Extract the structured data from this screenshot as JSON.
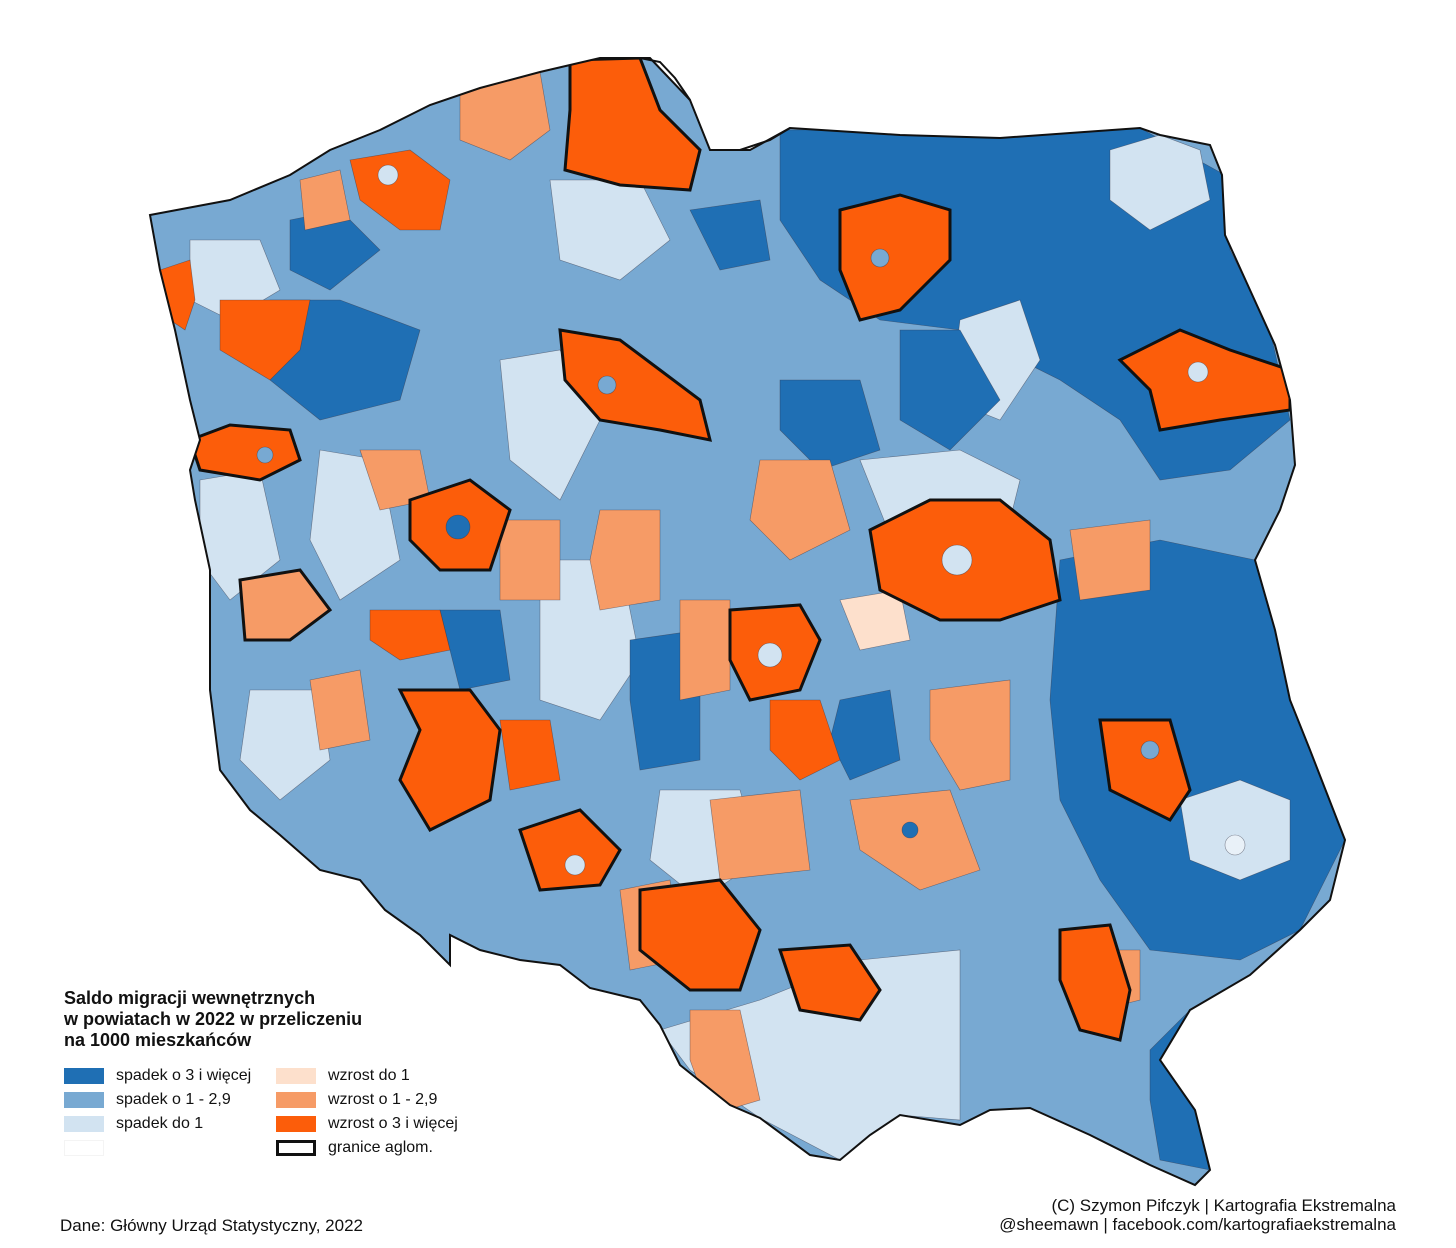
{
  "legend": {
    "title_lines": [
      "Saldo migracji wewnętrznych",
      "w powiatach w 2022 w przeliczeniu",
      "na 1000 mieszkańców"
    ],
    "items": [
      {
        "label": "spadek o 3 i więcej",
        "color": "#1f6fb4"
      },
      {
        "label": "spadek o 1 - 2,9",
        "color": "#78a9d2"
      },
      {
        "label": "spadek do 1",
        "color": "#d2e3f1"
      },
      {
        "label": "",
        "color": "#ffffff"
      },
      {
        "label": "wzrost do 1",
        "color": "#fde0cc"
      },
      {
        "label": "wzrost o 1 - 2,9",
        "color": "#f69b66"
      },
      {
        "label": "wzrost o 3 i więcej",
        "color": "#fc5d0a"
      },
      {
        "label": "granice aglom.",
        "color": "#111111"
      }
    ]
  },
  "credits": {
    "line1": "(C) Szymon Pifczyk | Kartografia Ekstremalna",
    "line2": "@sheemawn | facebook.com/kartografiaekstremalna"
  },
  "source": "Dane: Główny Urząd Statystyczny, 2022",
  "colors": {
    "dark_blue": "#1f6fb4",
    "mid_blue": "#78a9d2",
    "light_blue": "#d2e3f1",
    "light_orange": "#fde0cc",
    "mid_orange": "#f69b66",
    "dark_orange": "#fc5d0a",
    "border": "#111111"
  }
}
